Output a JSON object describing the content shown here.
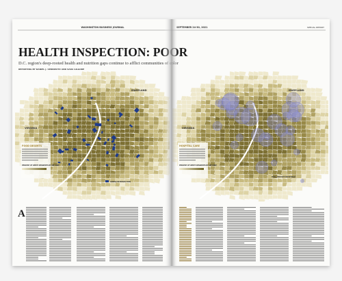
{
  "header": {
    "publication": "WASHINGTON BUSINESS JOURNAL",
    "date": "SEPTEMBER 24-30, 2021",
    "section": "SPECIAL REPORT"
  },
  "title": "HEALTH INSPECTION: POOR",
  "subtitle": "D.C. region's deep-rooted health and nutrition gaps continue to afflict communities of color",
  "byline": "REPORTING BY DANIEL J. SERNOVITZ AND SARA GILGORE",
  "maps": [
    {
      "heading": "FOOD DESERTS",
      "legend_title": "PERCENT OF WHITE RESIDENTS BY ZIP CODE",
      "state_labels": [
        "MARYLAND",
        "VIRGINIA"
      ],
      "key": "URBAN INTERSECTION"
    },
    {
      "heading": "HOSPITAL CARE",
      "legend_title": "PERCENT OF WHITE RESIDENTS BY ZIP CODE",
      "state_labels": [
        "MARYLAND",
        "VIRGINIA"
      ],
      "key": "FULL-SERVICE HOSPITALS"
    }
  ],
  "drop_cap": "A"
}
